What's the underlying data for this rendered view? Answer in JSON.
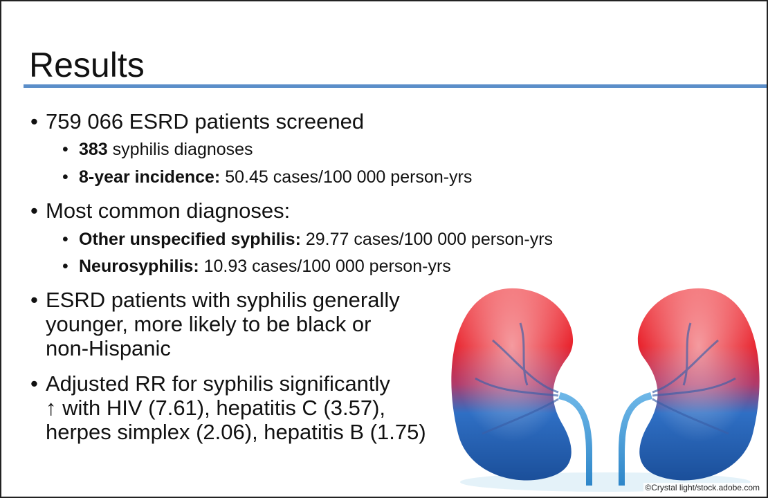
{
  "title": "Results",
  "bullets": {
    "screened": "759 066 ESRD patients screened",
    "diagnoses_count": "383",
    "diagnoses_text": " syphilis diagnoses",
    "incidence_label": "8-year incidence:",
    "incidence_value": " 50.45 cases/100 000 person-yrs",
    "common": "Most common diagnoses:",
    "other_label": "Other unspecified syphilis:",
    "other_value": " 29.77 cases/100 000 person-yrs",
    "neuro_label": "Neurosyphilis:",
    "neuro_value": " 10.93 cases/100 000 person-yrs",
    "demog_line1": "ESRD patients with syphilis generally",
    "demog_line2": "younger, more likely to be black or",
    "demog_line3": "non-Hispanic",
    "rr_line1": "Adjusted RR for syphilis significantly",
    "rr_line2": "↑ with HIV (7.61), hepatitis C (3.57),",
    "rr_line3": "herpes simplex (2.06), hepatitis B (1.75)"
  },
  "image": {
    "subject": "kidneys-illustration",
    "colors": {
      "top": "#e8202a",
      "bottom": "#1f5fb0",
      "ureter": "#4aa3dc"
    }
  },
  "credit": "©Crystal light/stock.adobe.com",
  "colors": {
    "rule": "#5b8ec9",
    "border": "#222222"
  }
}
